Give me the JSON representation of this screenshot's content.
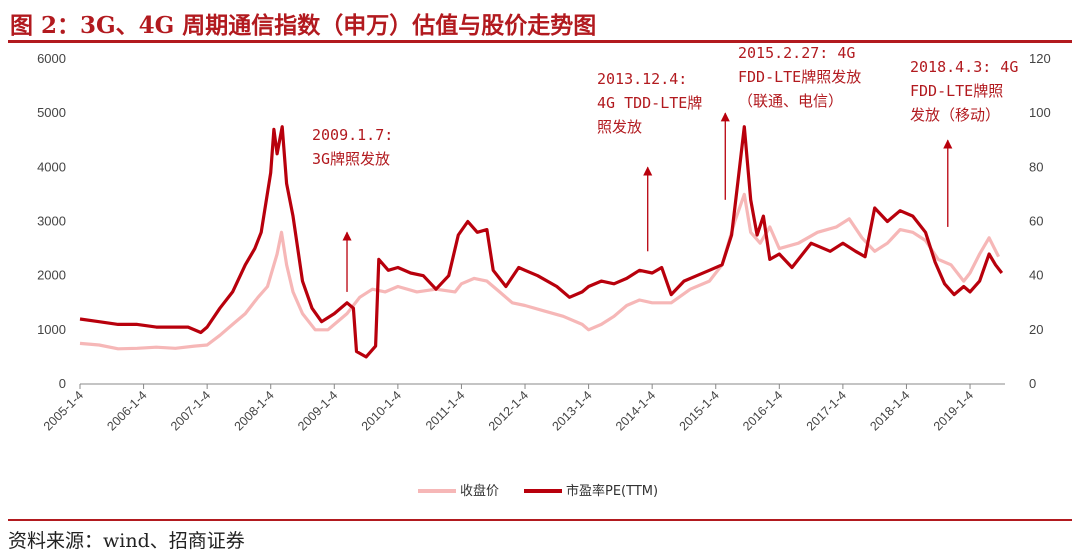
{
  "title": "图 2：3G、4G 周期通信指数（申万）估值与股价走势图",
  "source": "资料来源：wind、招商证券",
  "colors": {
    "accent": "#b21a1f",
    "close": "#f6b7b7",
    "pe": "#b8000c"
  },
  "chart_data": {
    "type": "line",
    "x_ticks": [
      "2005-1-4",
      "2006-1-4",
      "2007-1-4",
      "2008-1-4",
      "2009-1-4",
      "2010-1-4",
      "2011-1-4",
      "2012-1-4",
      "2013-1-4",
      "2014-1-4",
      "2015-1-4",
      "2016-1-4",
      "2017-1-4",
      "2018-1-4",
      "2019-1-4"
    ],
    "x_range": [
      2005.0,
      2019.55
    ],
    "y_left": {
      "min": 0,
      "max": 6000,
      "ticks": [
        0,
        1000,
        2000,
        3000,
        4000,
        5000,
        6000
      ]
    },
    "y_right": {
      "min": 0,
      "max": 120,
      "ticks": [
        0,
        20,
        40,
        60,
        80,
        100,
        120
      ]
    },
    "series": [
      {
        "name": "收盘价",
        "axis": "left",
        "points": [
          [
            2005.0,
            750
          ],
          [
            2005.3,
            720
          ],
          [
            2005.6,
            650
          ],
          [
            2005.9,
            660
          ],
          [
            2006.2,
            680
          ],
          [
            2006.5,
            660
          ],
          [
            2006.8,
            700
          ],
          [
            2007.0,
            720
          ],
          [
            2007.2,
            900
          ],
          [
            2007.4,
            1100
          ],
          [
            2007.6,
            1300
          ],
          [
            2007.8,
            1600
          ],
          [
            2007.95,
            1800
          ],
          [
            2008.0,
            2000
          ],
          [
            2008.1,
            2400
          ],
          [
            2008.17,
            2800
          ],
          [
            2008.25,
            2200
          ],
          [
            2008.35,
            1700
          ],
          [
            2008.5,
            1300
          ],
          [
            2008.7,
            1000
          ],
          [
            2008.9,
            1000
          ],
          [
            2009.0,
            1100
          ],
          [
            2009.2,
            1300
          ],
          [
            2009.4,
            1600
          ],
          [
            2009.6,
            1750
          ],
          [
            2009.8,
            1700
          ],
          [
            2010.0,
            1800
          ],
          [
            2010.3,
            1700
          ],
          [
            2010.6,
            1750
          ],
          [
            2010.9,
            1700
          ],
          [
            2011.0,
            1850
          ],
          [
            2011.2,
            1950
          ],
          [
            2011.4,
            1900
          ],
          [
            2011.6,
            1700
          ],
          [
            2011.8,
            1500
          ],
          [
            2012.0,
            1450
          ],
          [
            2012.3,
            1350
          ],
          [
            2012.6,
            1250
          ],
          [
            2012.9,
            1100
          ],
          [
            2013.0,
            1000
          ],
          [
            2013.2,
            1100
          ],
          [
            2013.4,
            1250
          ],
          [
            2013.6,
            1450
          ],
          [
            2013.8,
            1550
          ],
          [
            2014.0,
            1500
          ],
          [
            2014.3,
            1500
          ],
          [
            2014.6,
            1750
          ],
          [
            2014.9,
            1900
          ],
          [
            2015.1,
            2200
          ],
          [
            2015.3,
            3000
          ],
          [
            2015.45,
            3500
          ],
          [
            2015.55,
            2800
          ],
          [
            2015.7,
            2600
          ],
          [
            2015.85,
            2900
          ],
          [
            2016.0,
            2500
          ],
          [
            2016.3,
            2600
          ],
          [
            2016.6,
            2800
          ],
          [
            2016.9,
            2900
          ],
          [
            2017.1,
            3050
          ],
          [
            2017.3,
            2700
          ],
          [
            2017.5,
            2450
          ],
          [
            2017.7,
            2600
          ],
          [
            2017.9,
            2850
          ],
          [
            2018.1,
            2800
          ],
          [
            2018.3,
            2650
          ],
          [
            2018.5,
            2300
          ],
          [
            2018.7,
            2200
          ],
          [
            2018.9,
            1900
          ],
          [
            2019.0,
            2050
          ],
          [
            2019.15,
            2400
          ],
          [
            2019.3,
            2700
          ],
          [
            2019.45,
            2350
          ]
        ]
      },
      {
        "name": "市盈率PE(TTM)",
        "axis": "right",
        "points": [
          [
            2005.0,
            24
          ],
          [
            2005.3,
            23
          ],
          [
            2005.6,
            22
          ],
          [
            2005.9,
            22
          ],
          [
            2006.2,
            21
          ],
          [
            2006.5,
            21
          ],
          [
            2006.7,
            21
          ],
          [
            2006.9,
            19
          ],
          [
            2007.0,
            21
          ],
          [
            2007.2,
            28
          ],
          [
            2007.4,
            34
          ],
          [
            2007.6,
            44
          ],
          [
            2007.75,
            50
          ],
          [
            2007.85,
            56
          ],
          [
            2008.0,
            78
          ],
          [
            2008.05,
            94
          ],
          [
            2008.1,
            85
          ],
          [
            2008.18,
            95
          ],
          [
            2008.25,
            74
          ],
          [
            2008.35,
            62
          ],
          [
            2008.5,
            38
          ],
          [
            2008.65,
            28
          ],
          [
            2008.8,
            23
          ],
          [
            2009.0,
            26
          ],
          [
            2009.2,
            30
          ],
          [
            2009.3,
            28
          ],
          [
            2009.35,
            12
          ],
          [
            2009.5,
            10
          ],
          [
            2009.65,
            14
          ],
          [
            2009.7,
            46
          ],
          [
            2009.85,
            42
          ],
          [
            2010.0,
            43
          ],
          [
            2010.2,
            41
          ],
          [
            2010.4,
            40
          ],
          [
            2010.6,
            35
          ],
          [
            2010.8,
            40
          ],
          [
            2010.95,
            55
          ],
          [
            2011.1,
            60
          ],
          [
            2011.25,
            56
          ],
          [
            2011.4,
            57
          ],
          [
            2011.5,
            42
          ],
          [
            2011.7,
            36
          ],
          [
            2011.9,
            43
          ],
          [
            2012.0,
            42
          ],
          [
            2012.2,
            40
          ],
          [
            2012.5,
            36
          ],
          [
            2012.7,
            32
          ],
          [
            2012.9,
            34
          ],
          [
            2013.0,
            36
          ],
          [
            2013.2,
            38
          ],
          [
            2013.4,
            37
          ],
          [
            2013.6,
            39
          ],
          [
            2013.8,
            42
          ],
          [
            2014.0,
            41
          ],
          [
            2014.15,
            43
          ],
          [
            2014.3,
            33
          ],
          [
            2014.5,
            38
          ],
          [
            2014.7,
            40
          ],
          [
            2014.9,
            42
          ],
          [
            2015.1,
            44
          ],
          [
            2015.25,
            55
          ],
          [
            2015.35,
            75
          ],
          [
            2015.45,
            95
          ],
          [
            2015.55,
            68
          ],
          [
            2015.65,
            55
          ],
          [
            2015.75,
            62
          ],
          [
            2015.85,
            46
          ],
          [
            2016.0,
            48
          ],
          [
            2016.2,
            43
          ],
          [
            2016.5,
            52
          ],
          [
            2016.8,
            49
          ],
          [
            2017.0,
            52
          ],
          [
            2017.2,
            49
          ],
          [
            2017.35,
            47
          ],
          [
            2017.5,
            65
          ],
          [
            2017.7,
            60
          ],
          [
            2017.9,
            64
          ],
          [
            2018.1,
            62
          ],
          [
            2018.3,
            56
          ],
          [
            2018.45,
            45
          ],
          [
            2018.6,
            37
          ],
          [
            2018.75,
            33
          ],
          [
            2018.9,
            36
          ],
          [
            2019.0,
            34
          ],
          [
            2019.15,
            38
          ],
          [
            2019.3,
            48
          ],
          [
            2019.4,
            44
          ],
          [
            2019.5,
            41
          ]
        ]
      }
    ],
    "annotations": [
      {
        "lines": [
          "2009.1.7:",
          "3G牌照发放"
        ],
        "x": 2009.2,
        "arrow_from": 2800,
        "arrow_to": 1700
      },
      {
        "lines": [
          "2013.12.4:",
          "4G TDD-LTE牌",
          "照发放"
        ],
        "x": 2013.93,
        "arrow_from": 4000,
        "arrow_to": 2450
      },
      {
        "lines": [
          "2015.2.27: 4G",
          "FDD-LTE牌照发放",
          "（联通、电信）"
        ],
        "x": 2015.15,
        "arrow_from": 5000,
        "arrow_to": 3400
      },
      {
        "lines": [
          "2018.4.3: 4G",
          "FDD-LTE牌照",
          "发放（移动）"
        ],
        "x": 2018.65,
        "arrow_from": 4500,
        "arrow_to": 2900
      }
    ]
  }
}
